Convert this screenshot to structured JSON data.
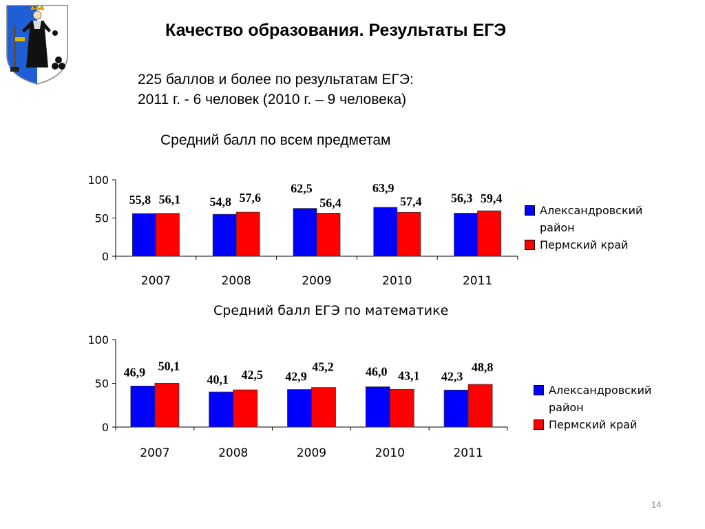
{
  "slide": {
    "title": "Качество образования.  Результаты ЕГЭ",
    "info_line1": "225 баллов и более по результатам ЕГЭ:",
    "info_line2": "2011 г. - 6 человек (2010 г. – 9 человека)",
    "page_number": "14"
  },
  "colors": {
    "series1": "#0000ff",
    "series2": "#ff0000"
  },
  "chart_data": [
    {
      "type": "bar",
      "title": "Средний балл по всем предметам",
      "categories": [
        "2007",
        "2008",
        "2009",
        "2010",
        "2011"
      ],
      "series": [
        {
          "name": "Александровский район",
          "values": [
            55.8,
            54.8,
            62.5,
            63.9,
            56.3
          ],
          "labels": [
            "55,8",
            "54,8",
            "62,5",
            "63,9",
            "56,3"
          ]
        },
        {
          "name": "Пермский край",
          "values": [
            56.1,
            57.6,
            56.4,
            57.4,
            59.4
          ],
          "labels": [
            "56,1",
            "57,6",
            "56,4",
            "57,4",
            "59,4"
          ]
        }
      ],
      "ylim": [
        0,
        100
      ],
      "yticks": [
        0,
        50,
        100
      ],
      "legend_position": "right"
    },
    {
      "type": "bar",
      "title": "Средний балл ЕГЭ по математике",
      "categories": [
        "2007",
        "2008",
        "2009",
        "2010",
        "2011"
      ],
      "series": [
        {
          "name": "Александровский район",
          "values": [
            46.9,
            40.1,
            42.9,
            46.0,
            42.3
          ],
          "labels": [
            "46,9",
            "40,1",
            "42,9",
            "46,0",
            "42,3"
          ]
        },
        {
          "name": "Пермский край",
          "values": [
            50.1,
            42.5,
            45.2,
            43.1,
            48.8
          ],
          "labels": [
            "50,1",
            "42,5",
            "45,2",
            "43,1",
            "48,8"
          ]
        }
      ],
      "ylim": [
        0,
        100
      ],
      "yticks": [
        0,
        50,
        100
      ],
      "legend_position": "right"
    }
  ]
}
